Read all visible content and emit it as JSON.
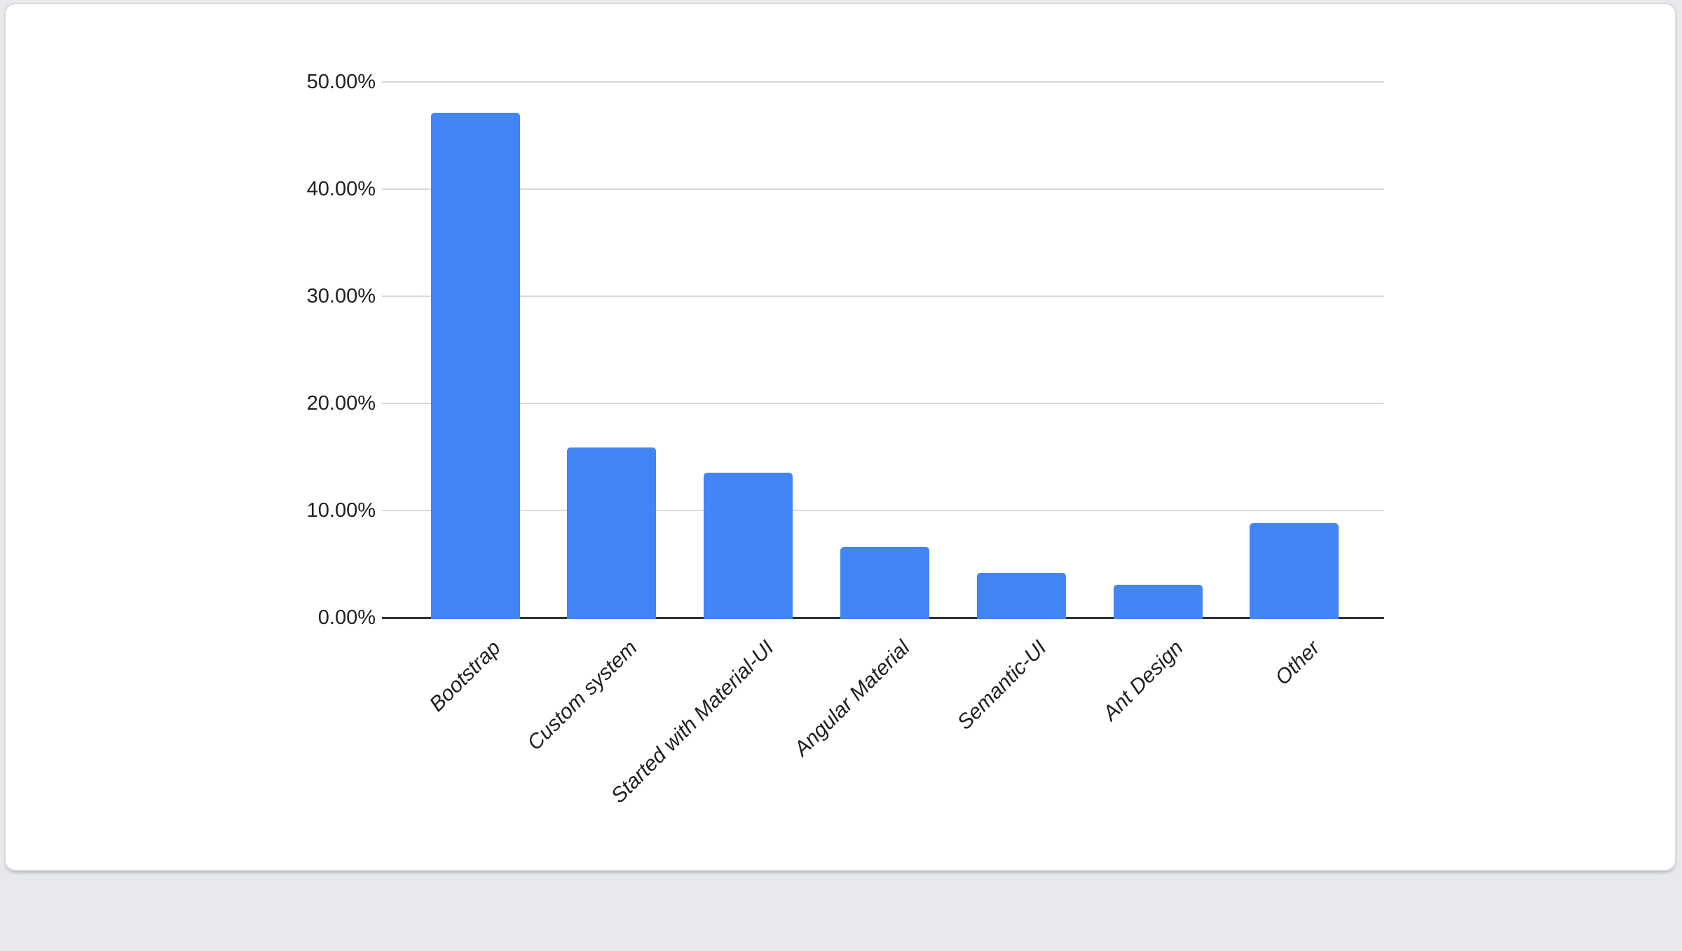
{
  "page": {
    "background_color": "#e7e9ec"
  },
  "card": {
    "background_color": "#ffffff",
    "border_color": "#d9dbde"
  },
  "chart_data": {
    "type": "bar",
    "title": "",
    "xlabel": "",
    "ylabel": "",
    "categories": [
      "Bootstrap",
      "Custom system",
      "Started with Material-UI",
      "Angular Material",
      "Semantic-UI",
      "Ant Design",
      "Other"
    ],
    "values": [
      47.1,
      15.9,
      13.5,
      6.6,
      4.2,
      3.1,
      8.8
    ],
    "value_unit": "%",
    "ylim": [
      0,
      50
    ],
    "y_tick_interval": 10,
    "y_ticks": [
      "0.00%",
      "10.00%",
      "20.00%",
      "30.00%",
      "40.00%",
      "50.00%"
    ],
    "grid": true,
    "legend": "none",
    "x_labels_rotated_degrees": 45,
    "x_labels_italic": true,
    "bar_color": "#4285f4",
    "gridline_color": "#d9d9d9",
    "axis_line_color": "#333333",
    "label_color": "#1f1f1f"
  }
}
